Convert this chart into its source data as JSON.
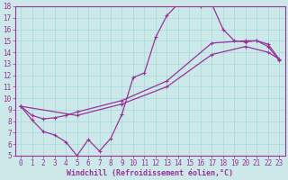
{
  "xlabel": "Windchill (Refroidissement éolien,°C)",
  "xlim": [
    -0.5,
    23.5
  ],
  "ylim": [
    5,
    18
  ],
  "xticks": [
    0,
    1,
    2,
    3,
    4,
    5,
    6,
    7,
    8,
    9,
    10,
    11,
    12,
    13,
    14,
    15,
    16,
    17,
    18,
    19,
    20,
    21,
    22,
    23
  ],
  "yticks": [
    5,
    6,
    7,
    8,
    9,
    10,
    11,
    12,
    13,
    14,
    15,
    16,
    17,
    18
  ],
  "bg_color": "#cce8e8",
  "grid_color": "#aadddd",
  "line_color": "#993399",
  "curve1_x": [
    0,
    1,
    2,
    3,
    4,
    5,
    6,
    7,
    8,
    9,
    10,
    11,
    12,
    13,
    14,
    15,
    16,
    17,
    18,
    19,
    20,
    21,
    22,
    23
  ],
  "curve1_y": [
    9.3,
    8.1,
    7.1,
    6.8,
    6.2,
    5.0,
    6.4,
    5.4,
    6.5,
    8.6,
    11.8,
    12.2,
    15.3,
    17.2,
    18.2,
    18.3,
    18.0,
    18.2,
    16.0,
    15.0,
    14.9,
    15.0,
    14.5,
    13.3
  ],
  "curve2_x": [
    0,
    1,
    2,
    3,
    4,
    5,
    9,
    13,
    17,
    20,
    21,
    22,
    23
  ],
  "curve2_y": [
    9.3,
    8.5,
    8.2,
    8.3,
    8.5,
    8.8,
    9.8,
    11.5,
    14.8,
    15.0,
    15.0,
    14.7,
    13.4
  ],
  "curve3_x": [
    0,
    5,
    9,
    13,
    17,
    20,
    22,
    23
  ],
  "curve3_y": [
    9.3,
    8.5,
    9.5,
    11.0,
    13.8,
    14.5,
    14.0,
    13.4
  ],
  "font_size_label": 6.0,
  "font_size_tick": 5.5
}
